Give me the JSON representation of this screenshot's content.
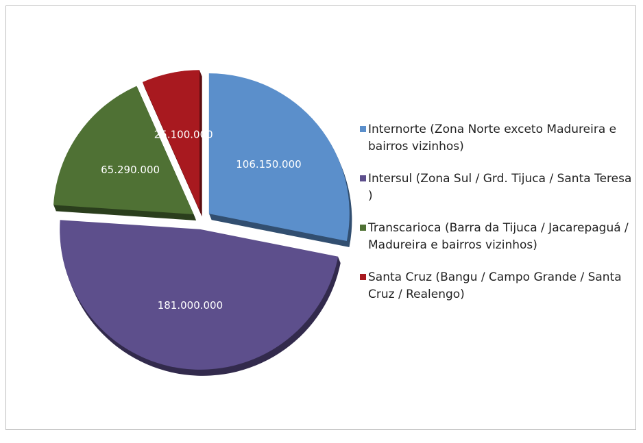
{
  "chart_data": {
    "type": "pie",
    "categories": [
      "Internorte (Zona Norte exceto Madureira e bairros vizinhos)",
      "Intersul (Zona Sul / Grd. Tijuca / Santa Teresa )",
      "Transcarioca (Barra da Tijuca / Jacarepaguá / Madureira e bairros vizinhos)",
      "Santa Cruz (Bangu / Campo Grande / Santa Cruz / Realengo)"
    ],
    "values": [
      106150000,
      181000000,
      65290000,
      25100000
    ],
    "value_labels": [
      "106.150.000",
      "181.000.000",
      "65.290.000",
      "25.100.000"
    ],
    "colors": [
      "#5b8fcb",
      "#5d4f8c",
      "#4f7134",
      "#a8191f"
    ],
    "legend": "right"
  }
}
